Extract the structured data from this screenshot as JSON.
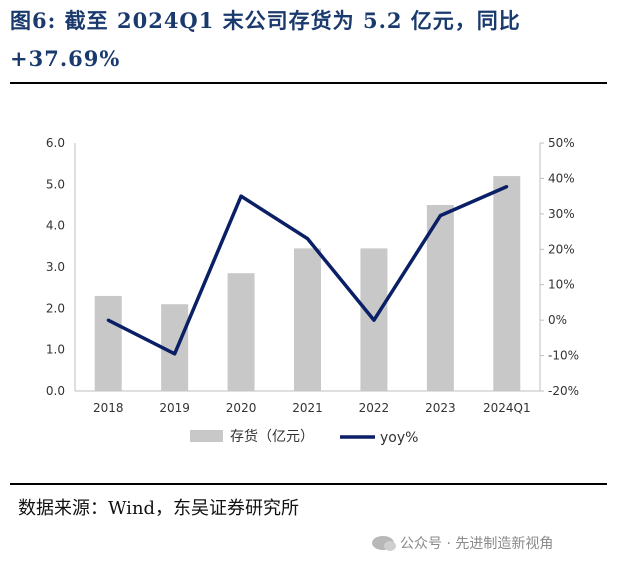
{
  "title": {
    "line1": "图6:  截至  2024Q1  末公司存货为  5.2  亿元，同比",
    "line2": "+37.69%"
  },
  "source": "数据来源：Wind，东吴证券研究所",
  "watermark": "公众号 · 先进制造新视角",
  "chart_data": {
    "type": "bar",
    "categories": [
      "2018",
      "2019",
      "2020",
      "2021",
      "2022",
      "2023",
      "2024Q1"
    ],
    "series": [
      {
        "name": "存货（亿元）",
        "type": "bar",
        "axis": "left",
        "color": "#c8c8c8",
        "values": [
          2.3,
          2.1,
          2.85,
          3.45,
          3.45,
          4.5,
          5.2
        ]
      },
      {
        "name": "yoy%",
        "type": "line",
        "axis": "right",
        "color": "#0b1f66",
        "values": [
          0,
          -9.5,
          35,
          23,
          0,
          29.5,
          37.69
        ]
      }
    ],
    "y_left": {
      "ticks": [
        "0.0",
        "1.0",
        "2.0",
        "3.0",
        "4.0",
        "5.0",
        "6.0"
      ],
      "lim": [
        0,
        6
      ]
    },
    "y_right": {
      "ticks": [
        "-20%",
        "-10%",
        "0%",
        "10%",
        "20%",
        "30%",
        "40%",
        "50%"
      ],
      "lim": [
        -20,
        50
      ]
    },
    "grid": false,
    "legend": "bottom"
  }
}
